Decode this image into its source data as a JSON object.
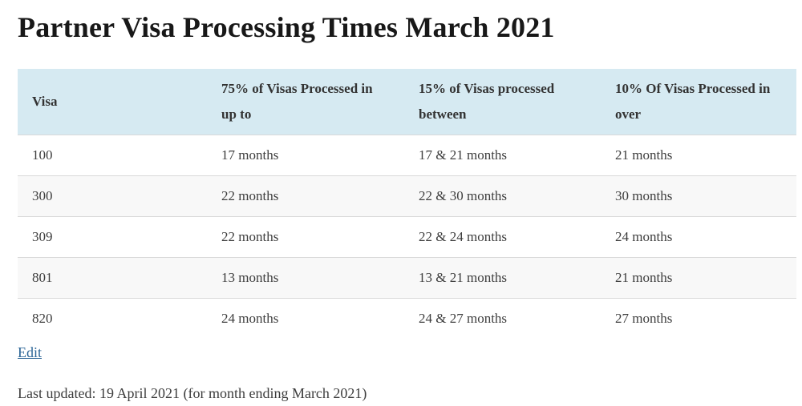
{
  "page": {
    "title": "Partner Visa Processing Times March 2021",
    "edit_label": "Edit",
    "last_updated": "Last updated: 19 April 2021 (for month ending March 2021)"
  },
  "table": {
    "columns": [
      "Visa",
      "75% of Visas Processed in up to",
      "15% of Visas processed between",
      "10% Of Visas Processed in over"
    ],
    "rows": [
      [
        "100",
        "17 months",
        "17 & 21 months",
        "21 months"
      ],
      [
        "300",
        "22 months",
        "22 & 30 months",
        "30 months"
      ],
      [
        "309",
        "22 months",
        "22 & 24 months",
        "24 months"
      ],
      [
        "801",
        "13 months",
        "13 & 21 months",
        "21 months"
      ],
      [
        "820",
        "24 months",
        "24 & 27 months",
        "27 months"
      ]
    ]
  },
  "colors": {
    "header_bg": "#d6eaf2",
    "stripe_bg": "#f8f8f8",
    "row_border": "#d9d9d9",
    "link_blue": "#2a6496",
    "body_text": "#3d3d3d",
    "title_text": "#181818"
  }
}
